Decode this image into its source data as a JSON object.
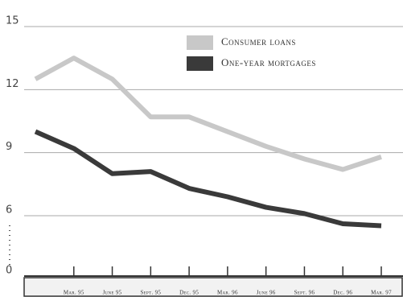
{
  "chart_data": {
    "type": "line",
    "categories": [
      null,
      "Mar. 95",
      "June 95",
      "Sept. 95",
      "Dec. 95",
      "Mar. 96",
      "June 96",
      "Sept. 96",
      "Dec. 96",
      "Mar. 97"
    ],
    "series": [
      {
        "name": "Consumer loans",
        "color": "#c8c8c8",
        "values": [
          12.5,
          13.5,
          12.5,
          10.7,
          10.7,
          10.0,
          9.3,
          8.7,
          8.2,
          8.8
        ]
      },
      {
        "name": "One-year mortgages",
        "color": "#3a3a3a",
        "values": [
          10.0,
          9.2,
          8.0,
          8.1,
          7.3,
          6.9,
          6.4,
          6.1,
          5.2,
          5.0
        ]
      }
    ],
    "ylim": [
      0,
      15
    ],
    "yticks": [
      0,
      6,
      9,
      12,
      15
    ],
    "axis_break": [
      0,
      6
    ],
    "grid": true
  }
}
